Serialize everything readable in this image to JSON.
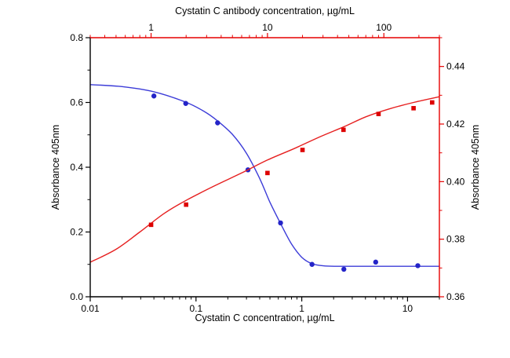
{
  "chart_data": {
    "type": "line",
    "top_axis_label": "Cystatin C antibody concentration, µg/mL",
    "bottom_axis_label": "Cystatin C concentration, µg/mL",
    "left_axis_label": "Absorbance 405nm",
    "right_axis_label": "Absorbance 405nm",
    "background": "#ffffff",
    "grid": "off",
    "legend": "none",
    "axes": {
      "bottom": {
        "scale": "log",
        "min": 0.01,
        "max": 20,
        "color": "#000000",
        "major_tick_values": [
          0.01,
          0.1,
          1,
          10
        ],
        "major_tick_labels": [
          "0.01",
          "0.1",
          "1",
          "10"
        ]
      },
      "top": {
        "scale": "log",
        "min": 0.3,
        "max": 300,
        "color": "#e60000",
        "major_tick_values": [
          1,
          10,
          100
        ],
        "major_tick_labels": [
          "1",
          "10",
          "100"
        ]
      },
      "left": {
        "scale": "linear",
        "min": 0,
        "max": 0.8,
        "major_step": 0.2,
        "minor_step": 0.1,
        "color": "#000000",
        "major_tick_labels": [
          "0.0",
          "0.2",
          "0.4",
          "0.6",
          "0.8"
        ]
      },
      "right": {
        "scale": "linear",
        "min": 0.36,
        "max": 0.45,
        "major_step": 0.02,
        "minor_step": 0.01,
        "color": "#e60000",
        "major_tick_labels": [
          "0.36",
          "0.38",
          "0.40",
          "0.42",
          "0.44"
        ]
      }
    },
    "series": [
      {
        "name": "cystatin-c-competition-curve",
        "marker": "circle",
        "marker_color": "#2424c8",
        "line_color": "#3c3cd8",
        "x_axis": "bottom",
        "y_axis": "left",
        "points": [
          [
            0.04,
            0.62
          ],
          [
            0.08,
            0.597
          ],
          [
            0.16,
            0.537
          ],
          [
            0.31,
            0.392
          ],
          [
            0.63,
            0.228
          ],
          [
            1.25,
            0.1
          ],
          [
            2.5,
            0.085
          ],
          [
            5,
            0.107
          ],
          [
            12.5,
            0.096
          ]
        ],
        "curve": [
          [
            0.01,
            0.655
          ],
          [
            0.02,
            0.649
          ],
          [
            0.04,
            0.633
          ],
          [
            0.08,
            0.601
          ],
          [
            0.12,
            0.572
          ],
          [
            0.16,
            0.543
          ],
          [
            0.22,
            0.502
          ],
          [
            0.3,
            0.443
          ],
          [
            0.4,
            0.365
          ],
          [
            0.5,
            0.292
          ],
          [
            0.63,
            0.226
          ],
          [
            0.8,
            0.163
          ],
          [
            1.0,
            0.122
          ],
          [
            1.25,
            0.102
          ],
          [
            1.6,
            0.0955
          ],
          [
            2.2,
            0.094
          ],
          [
            4.5,
            0.094
          ],
          [
            10,
            0.094
          ],
          [
            20,
            0.094
          ]
        ]
      },
      {
        "name": "antibody-titration-curve",
        "marker": "square",
        "marker_color": "#dd0000",
        "line_color": "#e62020",
        "x_axis": "top",
        "y_axis": "right",
        "points": [
          [
            1,
            0.385
          ],
          [
            2,
            0.392
          ],
          [
            10,
            0.403
          ],
          [
            20,
            0.411
          ],
          [
            45,
            0.418
          ],
          [
            90,
            0.4235
          ],
          [
            180,
            0.4255
          ],
          [
            260,
            0.4275
          ]
        ],
        "curve": [
          [
            0.3,
            0.372
          ],
          [
            0.5,
            0.3765
          ],
          [
            0.8,
            0.3825
          ],
          [
            1.3,
            0.389
          ],
          [
            2,
            0.3935
          ],
          [
            3.5,
            0.3985
          ],
          [
            6,
            0.403
          ],
          [
            10,
            0.4075
          ],
          [
            17,
            0.4115
          ],
          [
            28,
            0.4155
          ],
          [
            45,
            0.419
          ],
          [
            70,
            0.4225
          ],
          [
            110,
            0.4252
          ],
          [
            180,
            0.4275
          ],
          [
            300,
            0.4295
          ]
        ]
      }
    ]
  }
}
